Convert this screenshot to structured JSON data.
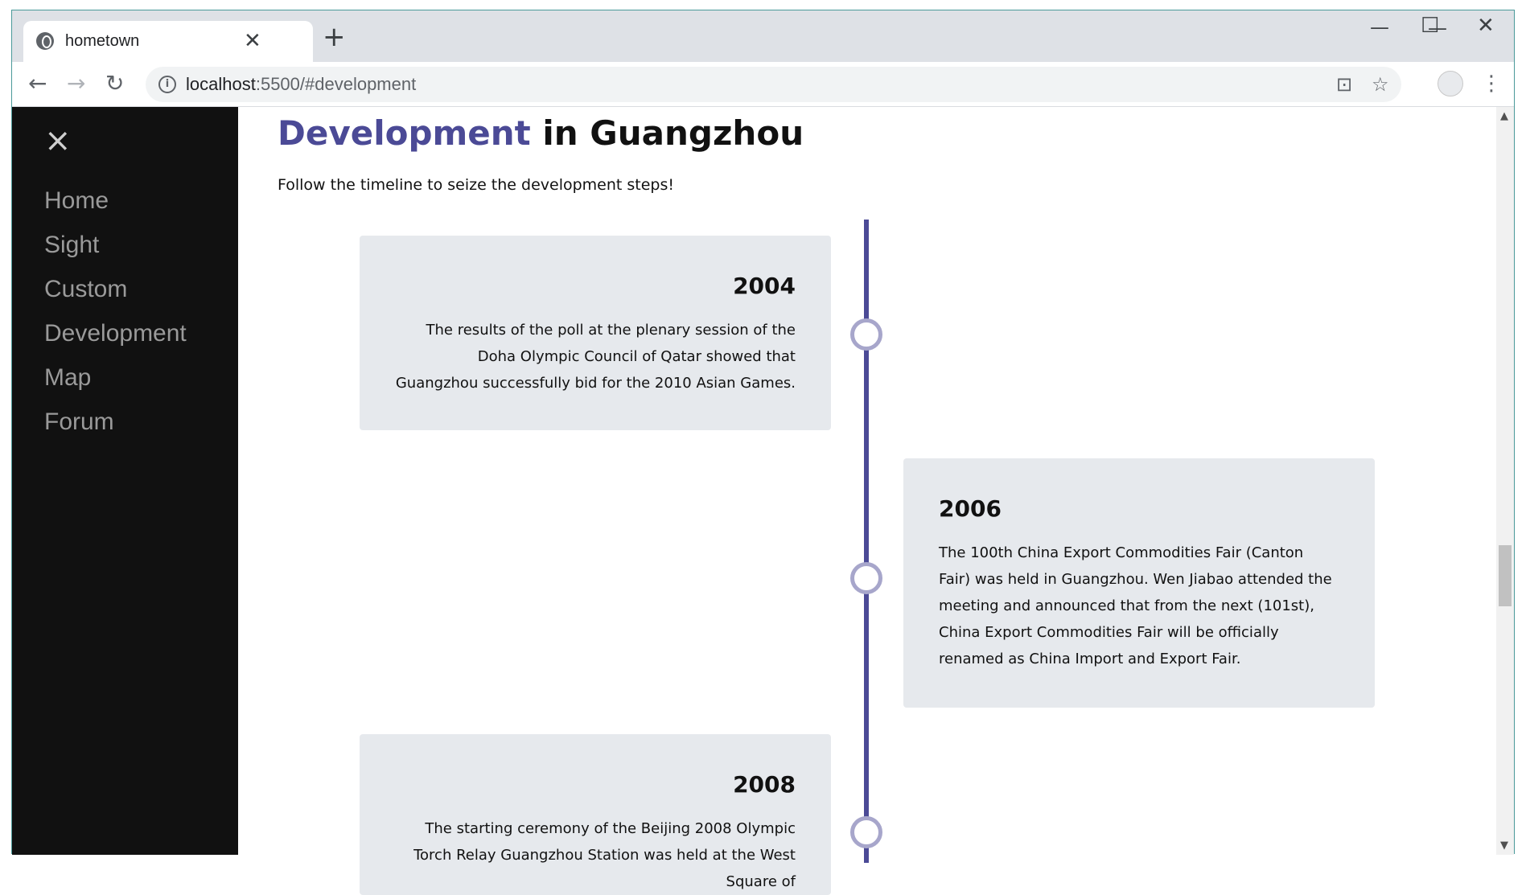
{
  "browser": {
    "tab_title": "hometown",
    "tab_close": "✕",
    "new_tab": "+",
    "url_host": "localhost",
    "url_rest": ":5500/#development",
    "minimize": "—",
    "maximize": "☐",
    "close": "✕"
  },
  "sidebar": {
    "close_label": "×",
    "items": [
      {
        "label": "Home"
      },
      {
        "label": "Sight"
      },
      {
        "label": "Custom"
      },
      {
        "label": "Development"
      },
      {
        "label": "Map"
      },
      {
        "label": "Forum"
      }
    ]
  },
  "main": {
    "title_accent": "Development",
    "title_rest": " in Guangzhou",
    "subtitle": "Follow the timeline to seize the development steps!",
    "events": [
      {
        "year": "2004",
        "text": "The results of the poll at the plenary session of the Doha Olympic Council of Qatar showed that Guangzhou successfully bid for the 2010 Asian Games.",
        "side": "left"
      },
      {
        "year": "2006",
        "text": "The 100th China Export Commodities Fair (Canton Fair) was held in Guangzhou. Wen Jiabao attended the meeting and announced that from the next (101st), China Export Commodities Fair will be officially renamed as China Import and Export Fair.",
        "side": "right"
      },
      {
        "year": "2008",
        "text": "The starting ceremony of the Beijing 2008 Olympic Torch Relay Guangzhou Station was held at the West Square of",
        "side": "left"
      }
    ]
  },
  "colors": {
    "accent": "#4b4a96",
    "marker_border": "#a7a6cb",
    "card_bg": "#e6e9ed",
    "sidebar_bg": "#111111"
  }
}
